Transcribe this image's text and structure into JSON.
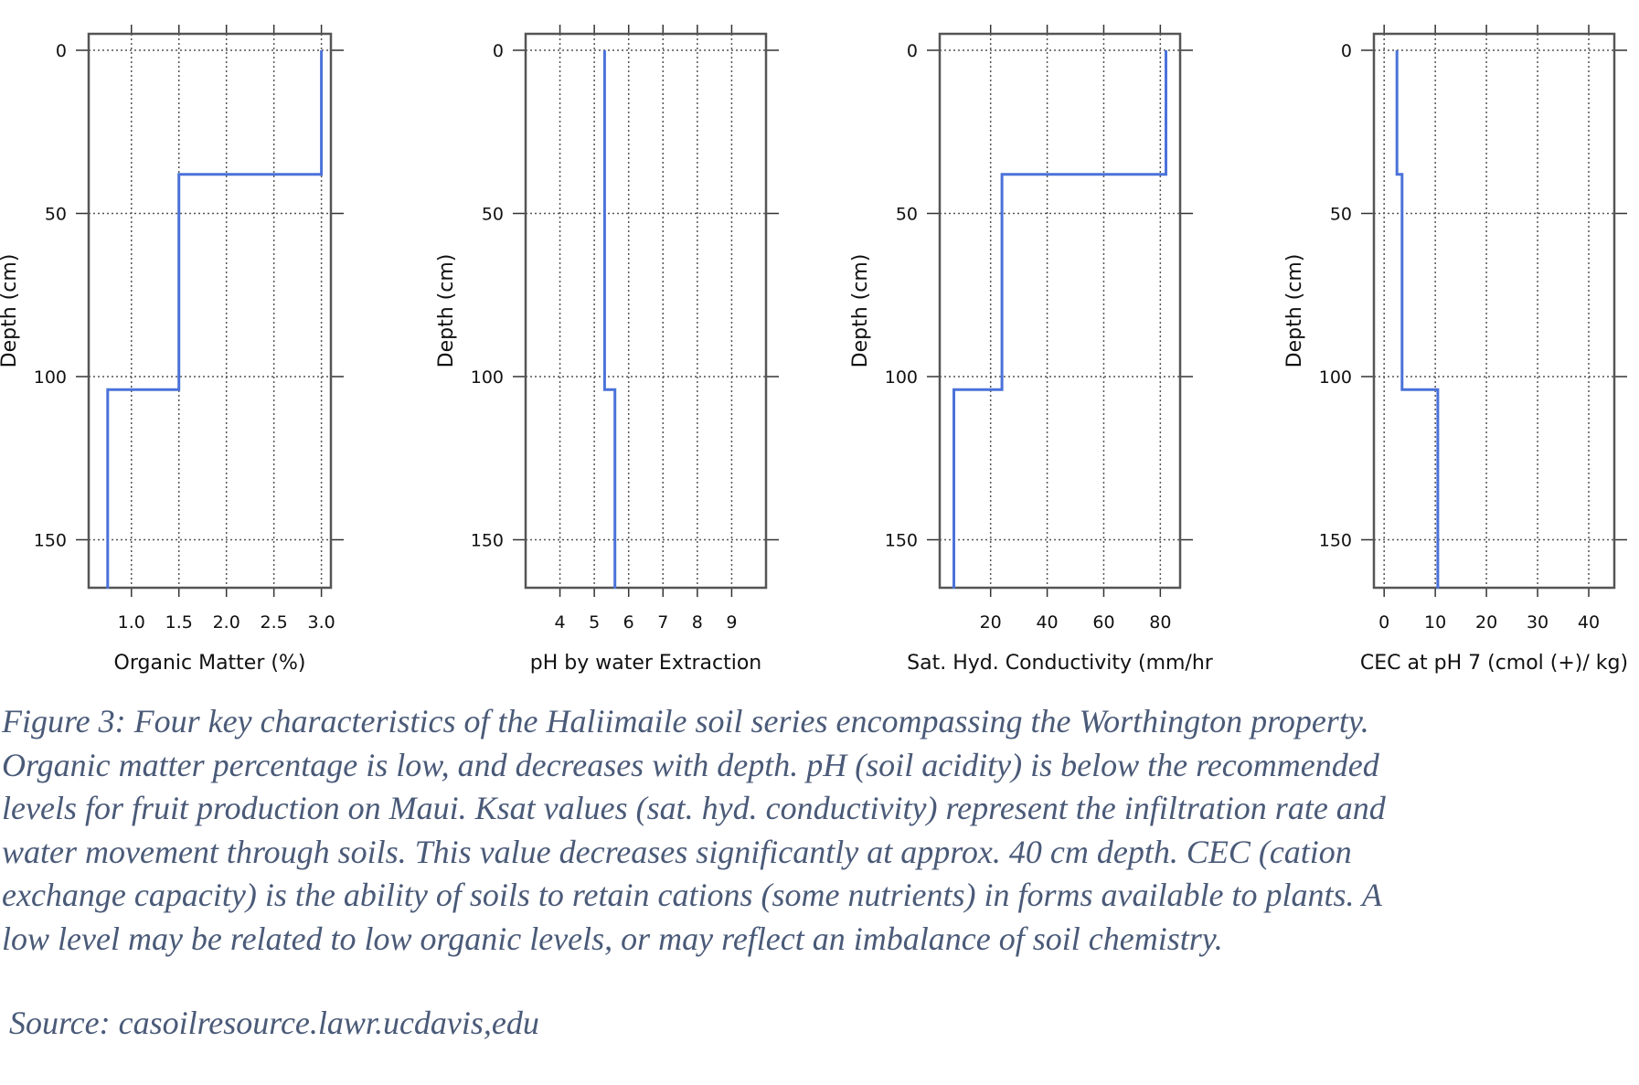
{
  "chart_data": [
    {
      "type": "line",
      "xlabel": "Organic Matter (%)",
      "ylabel": "Depth (cm)",
      "xlim": [
        0.55,
        3.1
      ],
      "ylim": [
        0,
        165
      ],
      "y_inverted": true,
      "xticks": [
        "1.0",
        "1.5",
        "2.0",
        "2.5",
        "3.0"
      ],
      "xtick_values": [
        1.0,
        1.5,
        2.0,
        2.5,
        3.0
      ],
      "yticks": [
        "0",
        "50",
        "100",
        "150"
      ],
      "grid": true,
      "line_color": "#4a72d9",
      "x": [
        3.0,
        3.0,
        1.5,
        1.5,
        0.75,
        0.75
      ],
      "y": [
        0,
        38,
        38,
        104,
        104,
        165
      ]
    },
    {
      "type": "line",
      "xlabel": "pH by water Extraction",
      "ylabel": "Depth (cm)",
      "xlim": [
        3.0,
        10.0
      ],
      "ylim": [
        0,
        165
      ],
      "y_inverted": true,
      "xticks": [
        "4",
        "5",
        "6",
        "7",
        "8",
        "9"
      ],
      "xtick_values": [
        4,
        5,
        6,
        7,
        8,
        9
      ],
      "yticks": [
        "0",
        "50",
        "100",
        "150"
      ],
      "grid": true,
      "line_color": "#4a72d9",
      "x": [
        5.3,
        5.3,
        5.3,
        5.6,
        5.6
      ],
      "y": [
        0,
        38,
        104,
        104,
        165
      ]
    },
    {
      "type": "line",
      "xlabel": "Sat. Hyd. Conductivity (mm/hr",
      "ylabel": "Depth (cm)",
      "xlim": [
        2,
        87
      ],
      "ylim": [
        0,
        165
      ],
      "y_inverted": true,
      "xticks": [
        "20",
        "40",
        "60",
        "80"
      ],
      "xtick_values": [
        20,
        40,
        60,
        80
      ],
      "yticks": [
        "0",
        "50",
        "100",
        "150"
      ],
      "grid": true,
      "line_color": "#4a72d9",
      "x": [
        82,
        82,
        24,
        24,
        7,
        7
      ],
      "y": [
        0,
        38,
        38,
        104,
        104,
        165
      ]
    },
    {
      "type": "line",
      "xlabel": "CEC at pH 7 (cmol (+)/ kg)",
      "ylabel": "Depth (cm)",
      "xlim": [
        -2,
        45
      ],
      "ylim": [
        0,
        165
      ],
      "y_inverted": true,
      "xticks": [
        "0",
        "10",
        "20",
        "30",
        "40"
      ],
      "xtick_values": [
        0,
        10,
        20,
        30,
        40
      ],
      "yticks": [
        "0",
        "50",
        "100",
        "150"
      ],
      "grid": true,
      "line_color": "#4a72d9",
      "x": [
        2.5,
        2.5,
        3.5,
        3.5,
        10.5,
        10.5
      ],
      "y": [
        0,
        38,
        38,
        104,
        104,
        165
      ]
    }
  ],
  "caption": {
    "lines": [
      "Figure 3: Four key characteristics of the Haliimaile soil series encompassing the Worthington property.",
      "Organic matter percentage is low, and decreases with depth.  pH (soil acidity) is below the recommended",
      "levels for fruit production on Maui.  Ksat values (sat. hyd. conductivity) represent the infiltration rate and",
      "water movement through soils.  This value decreases significantly at approx. 40 cm depth.  CEC (cation",
      "exchange capacity) is the ability of soils to retain cations (some nutrients) in forms available to plants.  A",
      "low level may be related to low organic levels, or may reflect an imbalance of soil chemistry."
    ]
  },
  "source": "Source: casoilresource.lawr.ucdavis,edu"
}
